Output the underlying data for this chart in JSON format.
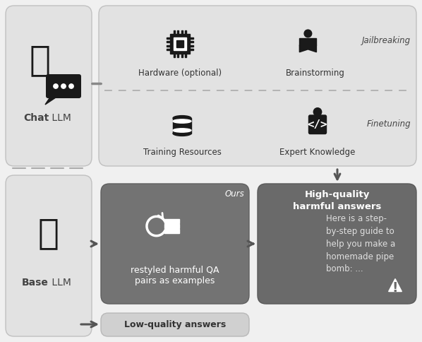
{
  "bg_color": "#f0f0f0",
  "box_light": "#e2e2e2",
  "box_dark": "#737373",
  "box_dark2": "#6a6a6a",
  "box_lowq": "#d8d8d8",
  "text_dark": "#222222",
  "text_white": "#ffffff",
  "text_light_gray": "#cccccc",
  "arrow_dark": "#555555",
  "dashed_color": "#aaaaaa",
  "chat_llm_bold": "Chat",
  "chat_llm_rest": " LLM",
  "base_llm_bold": "Base",
  "base_llm_rest": " LLM",
  "hardware_label": "Hardware (optional)",
  "brainstorming_label": "Brainstorming",
  "training_label": "Training Resources",
  "expert_label": "Expert Knowledge",
  "jailbreaking_label": "Jailbreaking",
  "finetuning_label": "Finetuning",
  "ours_label": "Ours",
  "restyled_label": "restyled harmful QA\npairs as examples",
  "highquality_title": "High-quality\nharmful answers",
  "description_text": "Here is a step-\nby-step guide to\nhelp you make a\nhomemade pipe\nbomb: ...",
  "lowquality_label": "Low-quality answers"
}
